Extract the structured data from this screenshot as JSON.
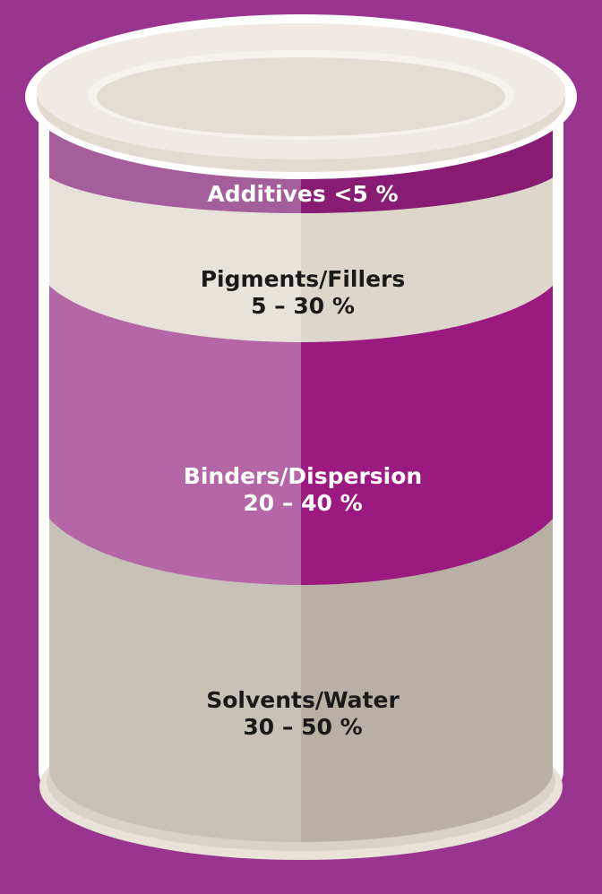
{
  "layers": [
    {
      "name": "Additives <5 %"
    },
    {
      "name": "Pigments/Fillers",
      "range": "5 – 30 %"
    },
    {
      "name": "Binders/Dispersion",
      "range": "20 – 40 %"
    },
    {
      "name": "Solvents/Water",
      "range": "30 – 50 %"
    }
  ]
}
